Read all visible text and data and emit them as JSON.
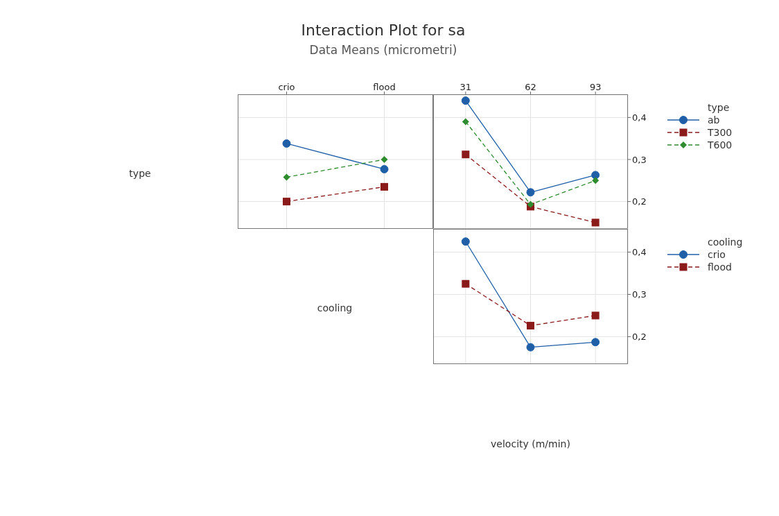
{
  "chart_data": [
    {
      "type": "line",
      "title": "Interaction Plot for sa",
      "subtitle": "Data Means (micrometri)",
      "ylabel": "type",
      "categories": [
        "crio",
        "flood"
      ],
      "ylim": [
        0.135,
        0.455
      ],
      "yticks": [
        0.2,
        0.3,
        0.4
      ],
      "grid": true,
      "tick_labels": "x",
      "legend": "right",
      "legend_title": "type",
      "series": [
        {
          "name": "ab",
          "color": "#1f5fa8",
          "marker": "circle",
          "line_style": "solid",
          "values": [
            0.338,
            0.277
          ]
        },
        {
          "name": "T300",
          "color": "#8b1a1a",
          "marker": "square",
          "line_style": "dashed",
          "values": [
            0.2,
            0.235
          ]
        },
        {
          "name": "T600",
          "color": "#2e8b2e",
          "marker": "diamond",
          "line_style": "dashed",
          "values": [
            0.258,
            0.3
          ]
        }
      ]
    },
    {
      "type": "line",
      "categories": [
        "31",
        "62",
        "93"
      ],
      "ylim": [
        0.135,
        0.455
      ],
      "yticks": [
        {
          "value": 0.2,
          "label": "0,2"
        },
        {
          "value": 0.3,
          "label": "0,3"
        },
        {
          "value": 0.4,
          "label": "0,4"
        }
      ],
      "grid": true,
      "series": [
        {
          "color": "#1f5fa8",
          "marker": "circle",
          "line_style": "solid",
          "values": [
            0.44,
            0.222,
            0.263
          ]
        },
        {
          "color": "#8b1a1a",
          "marker": "square",
          "line_style": "dashed",
          "values": [
            0.312,
            0.188,
            0.15
          ]
        },
        {
          "color": "#2e8b2e",
          "marker": "diamond",
          "line_style": "dashed",
          "values": [
            0.39,
            0.193,
            0.25
          ]
        }
      ]
    },
    {
      "type": "line",
      "ylabel": "cooling",
      "xlabel": "velocity (m/min)",
      "categories": [
        "31",
        "62",
        "93"
      ],
      "ylim": [
        0.135,
        0.455
      ],
      "yticks": [
        {
          "value": 0.2,
          "label": "0,2"
        },
        {
          "value": 0.3,
          "label": "0,3"
        },
        {
          "value": 0.4,
          "label": "0,4"
        }
      ],
      "grid": true,
      "tick_labels": "y",
      "legend": "right",
      "legend_title": "cooling",
      "series": [
        {
          "name": "crio",
          "color": "#1f5fa8",
          "marker": "circle",
          "line_style": "solid",
          "values": [
            0.425,
            0.175,
            0.187
          ]
        },
        {
          "name": "flood",
          "color": "#8b1a1a",
          "marker": "square",
          "line_style": "dashed",
          "values": [
            0.325,
            0.226,
            0.25
          ]
        }
      ]
    }
  ]
}
